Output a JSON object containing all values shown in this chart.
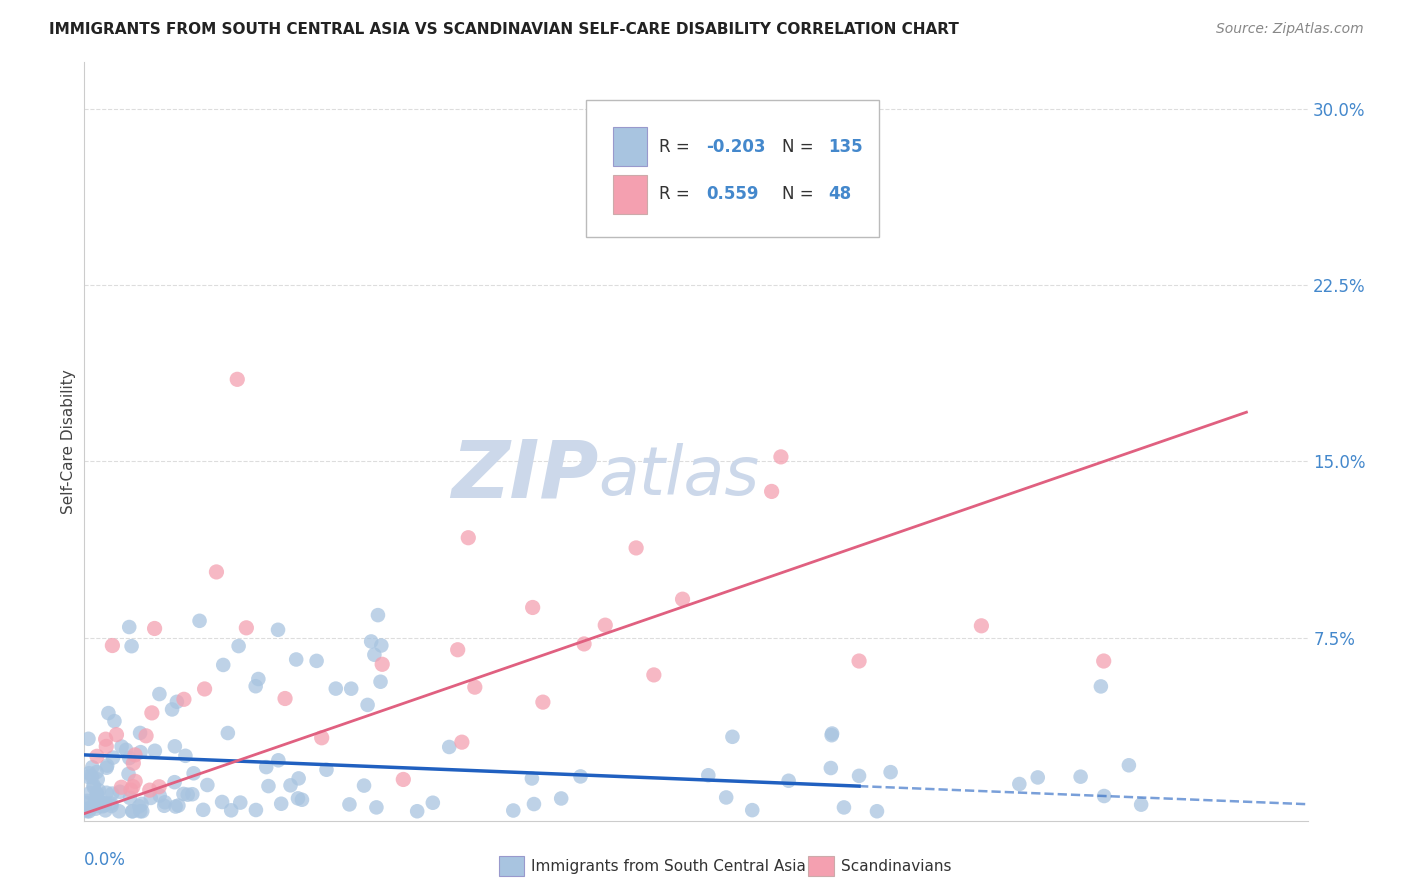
{
  "title": "IMMIGRANTS FROM SOUTH CENTRAL ASIA VS SCANDINAVIAN SELF-CARE DISABILITY CORRELATION CHART",
  "source": "Source: ZipAtlas.com",
  "ylabel": "Self-Care Disability",
  "right_yticks": [
    0.0,
    0.075,
    0.15,
    0.225,
    0.3
  ],
  "right_yticklabels": [
    "",
    "7.5%",
    "15.0%",
    "22.5%",
    "30.0%"
  ],
  "xlim": [
    0.0,
    0.6
  ],
  "ylim": [
    -0.003,
    0.32
  ],
  "blue_R": -0.203,
  "blue_N": 135,
  "pink_R": 0.559,
  "pink_N": 48,
  "blue_color": "#a8c4e0",
  "pink_color": "#f4a0b0",
  "blue_line_color": "#2060c0",
  "pink_line_color": "#e06080",
  "watermark_zip": "ZIP",
  "watermark_atlas": "atlas",
  "watermark_color": "#ccd8ea",
  "legend_label_blue": "Immigrants from South Central Asia",
  "legend_label_pink": "Scandinavians",
  "title_fontsize": 11,
  "source_fontsize": 10
}
